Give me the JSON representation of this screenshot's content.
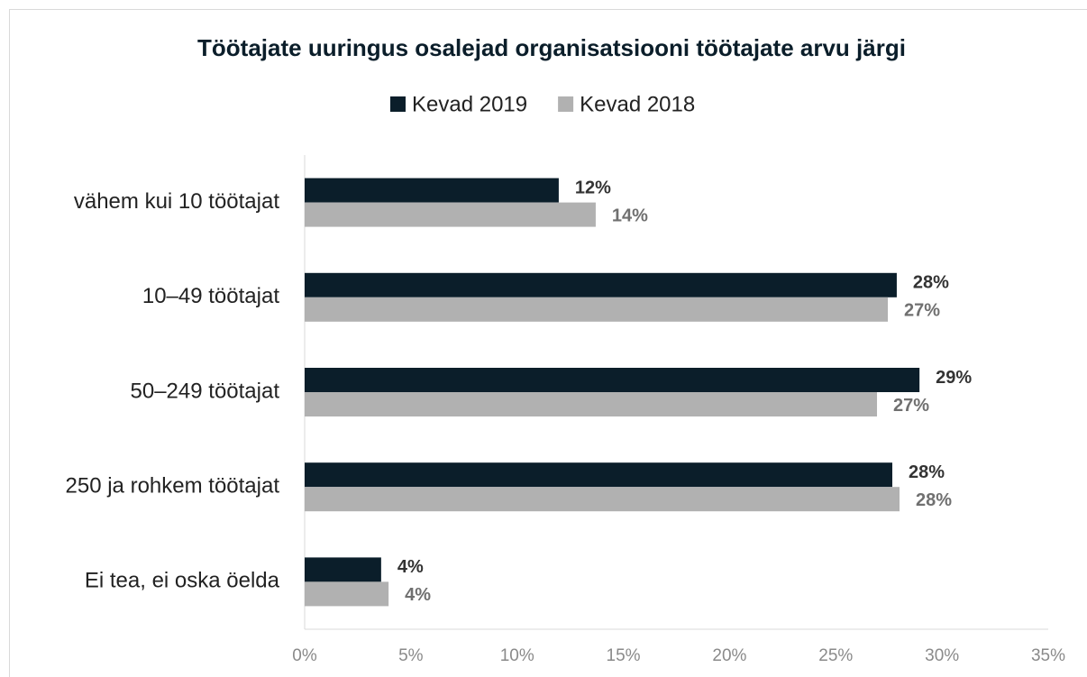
{
  "chart_data": {
    "type": "bar",
    "orientation": "horizontal",
    "title": "Töötajate uuringus osalejad organisatsiooni töötajate arvu järgi",
    "categories": [
      "vähem kui 10 töötajat",
      "10–49 töötajat",
      "50–249 töötajat",
      "250 ja rohkem töötajat",
      "Ei tea, ei oska öelda"
    ],
    "series": [
      {
        "name": "Kevad 2019",
        "color": "#0b1e2a",
        "label_color": "#333333",
        "values": [
          11.96,
          27.87,
          28.94,
          27.66,
          3.6
        ],
        "value_labels": [
          "12%",
          "28%",
          "29%",
          "28%",
          "4%"
        ]
      },
      {
        "name": "Kevad 2018",
        "color": "#b1b1b1",
        "label_color": "#707070",
        "values": [
          13.7,
          27.45,
          26.94,
          28.0,
          3.95
        ],
        "value_labels": [
          "14%",
          "27%",
          "27%",
          "28%",
          "4%"
        ]
      }
    ],
    "xlim": [
      0,
      35
    ],
    "xticks": [
      {
        "value": 0,
        "label": "0%"
      },
      {
        "value": 5,
        "label": "5%"
      },
      {
        "value": 10,
        "label": "10%"
      },
      {
        "value": 15,
        "label": "15%"
      },
      {
        "value": 20,
        "label": "20%"
      },
      {
        "value": 25,
        "label": "25%"
      },
      {
        "value": 30,
        "label": "30%"
      },
      {
        "value": 35,
        "label": "35%"
      }
    ],
    "legend": "top",
    "grid": false
  }
}
